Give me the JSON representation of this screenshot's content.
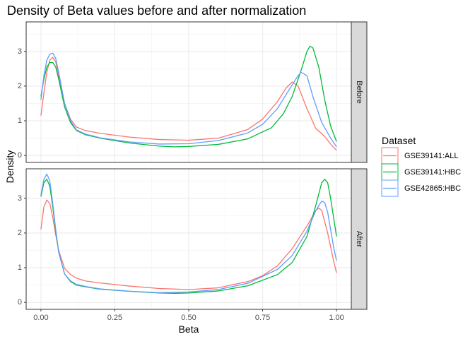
{
  "chart_data": {
    "type": "line",
    "title": "Density of Beta values before and after normalization",
    "xlabel": "Beta",
    "ylabel": "Density",
    "xlim": [
      -0.05,
      1.05
    ],
    "ylim": [
      -0.2,
      3.85
    ],
    "x_ticks": [
      0.0,
      0.25,
      0.5,
      0.75,
      1.0
    ],
    "x_tick_labels": [
      "0.00",
      "0.25",
      "0.50",
      "0.75",
      "1.00"
    ],
    "y_ticks": [
      0,
      1,
      2,
      3
    ],
    "y_tick_labels": [
      "0",
      "1",
      "2",
      "3"
    ],
    "grid": true,
    "legend": {
      "title": "Dataset",
      "position": "right",
      "entries": [
        {
          "name": "GSE39141:ALL",
          "color": "#F8766D"
        },
        {
          "name": "GSE39141:HBC",
          "color": "#00BA38"
        },
        {
          "name": "GSE42865:HBC",
          "color": "#619CFF"
        }
      ]
    },
    "panels": [
      {
        "label": "Before",
        "series": [
          {
            "name": "GSE39141:ALL",
            "color": "#F8766D",
            "points": [
              [
                0.0,
                1.15
              ],
              [
                0.01,
                1.8
              ],
              [
                0.02,
                2.4
              ],
              [
                0.03,
                2.75
              ],
              [
                0.04,
                2.83
              ],
              [
                0.05,
                2.7
              ],
              [
                0.06,
                2.3
              ],
              [
                0.08,
                1.5
              ],
              [
                0.1,
                1.05
              ],
              [
                0.12,
                0.82
              ],
              [
                0.15,
                0.72
              ],
              [
                0.2,
                0.64
              ],
              [
                0.3,
                0.53
              ],
              [
                0.4,
                0.46
              ],
              [
                0.5,
                0.44
              ],
              [
                0.6,
                0.5
              ],
              [
                0.7,
                0.75
              ],
              [
                0.75,
                1.05
              ],
              [
                0.8,
                1.55
              ],
              [
                0.83,
                1.95
              ],
              [
                0.85,
                2.12
              ],
              [
                0.87,
                2.0
              ],
              [
                0.9,
                1.35
              ],
              [
                0.93,
                0.78
              ],
              [
                0.96,
                0.55
              ],
              [
                0.98,
                0.33
              ],
              [
                1.0,
                0.15
              ]
            ]
          },
          {
            "name": "GSE39141:HBC",
            "color": "#00BA38",
            "points": [
              [
                0.0,
                1.7
              ],
              [
                0.01,
                2.2
              ],
              [
                0.02,
                2.55
              ],
              [
                0.03,
                2.68
              ],
              [
                0.04,
                2.68
              ],
              [
                0.05,
                2.55
              ],
              [
                0.06,
                2.2
              ],
              [
                0.08,
                1.4
              ],
              [
                0.1,
                0.95
              ],
              [
                0.12,
                0.72
              ],
              [
                0.15,
                0.6
              ],
              [
                0.2,
                0.5
              ],
              [
                0.3,
                0.36
              ],
              [
                0.4,
                0.27
              ],
              [
                0.45,
                0.25
              ],
              [
                0.5,
                0.26
              ],
              [
                0.6,
                0.32
              ],
              [
                0.7,
                0.48
              ],
              [
                0.78,
                0.8
              ],
              [
                0.82,
                1.2
              ],
              [
                0.85,
                1.7
              ],
              [
                0.88,
                2.45
              ],
              [
                0.9,
                3.0
              ],
              [
                0.91,
                3.15
              ],
              [
                0.92,
                3.1
              ],
              [
                0.94,
                2.55
              ],
              [
                0.96,
                1.6
              ],
              [
                0.98,
                0.85
              ],
              [
                1.0,
                0.4
              ]
            ]
          },
          {
            "name": "GSE42865:HBC",
            "color": "#619CFF",
            "points": [
              [
                0.0,
                1.6
              ],
              [
                0.01,
                2.3
              ],
              [
                0.02,
                2.75
              ],
              [
                0.03,
                2.92
              ],
              [
                0.04,
                2.95
              ],
              [
                0.05,
                2.8
              ],
              [
                0.06,
                2.4
              ],
              [
                0.08,
                1.5
              ],
              [
                0.1,
                1.0
              ],
              [
                0.12,
                0.74
              ],
              [
                0.15,
                0.62
              ],
              [
                0.2,
                0.51
              ],
              [
                0.3,
                0.39
              ],
              [
                0.4,
                0.33
              ],
              [
                0.5,
                0.34
              ],
              [
                0.6,
                0.43
              ],
              [
                0.7,
                0.65
              ],
              [
                0.75,
                0.9
              ],
              [
                0.8,
                1.35
              ],
              [
                0.84,
                1.9
              ],
              [
                0.87,
                2.3
              ],
              [
                0.88,
                2.4
              ],
              [
                0.9,
                2.3
              ],
              [
                0.92,
                1.7
              ],
              [
                0.95,
                0.95
              ],
              [
                0.98,
                0.5
              ],
              [
                1.0,
                0.25
              ]
            ]
          }
        ]
      },
      {
        "label": "After",
        "series": [
          {
            "name": "GSE39141:ALL",
            "color": "#F8766D",
            "points": [
              [
                0.0,
                2.1
              ],
              [
                0.01,
                2.75
              ],
              [
                0.02,
                2.95
              ],
              [
                0.03,
                2.85
              ],
              [
                0.04,
                2.45
              ],
              [
                0.05,
                1.95
              ],
              [
                0.06,
                1.5
              ],
              [
                0.08,
                0.98
              ],
              [
                0.1,
                0.8
              ],
              [
                0.12,
                0.7
              ],
              [
                0.15,
                0.62
              ],
              [
                0.2,
                0.56
              ],
              [
                0.3,
                0.47
              ],
              [
                0.4,
                0.4
              ],
              [
                0.5,
                0.37
              ],
              [
                0.6,
                0.42
              ],
              [
                0.7,
                0.6
              ],
              [
                0.75,
                0.77
              ],
              [
                0.8,
                1.05
              ],
              [
                0.85,
                1.55
              ],
              [
                0.9,
                2.2
              ],
              [
                0.93,
                2.65
              ],
              [
                0.94,
                2.72
              ],
              [
                0.95,
                2.65
              ],
              [
                0.97,
                2.0
              ],
              [
                0.99,
                1.2
              ],
              [
                1.0,
                0.85
              ]
            ]
          },
          {
            "name": "GSE39141:HBC",
            "color": "#00BA38",
            "points": [
              [
                0.0,
                3.05
              ],
              [
                0.01,
                3.45
              ],
              [
                0.02,
                3.55
              ],
              [
                0.03,
                3.35
              ],
              [
                0.04,
                2.75
              ],
              [
                0.05,
                2.05
              ],
              [
                0.06,
                1.45
              ],
              [
                0.08,
                0.82
              ],
              [
                0.1,
                0.6
              ],
              [
                0.12,
                0.5
              ],
              [
                0.15,
                0.45
              ],
              [
                0.2,
                0.38
              ],
              [
                0.3,
                0.32
              ],
              [
                0.4,
                0.27
              ],
              [
                0.45,
                0.26
              ],
              [
                0.5,
                0.27
              ],
              [
                0.6,
                0.33
              ],
              [
                0.7,
                0.48
              ],
              [
                0.8,
                0.8
              ],
              [
                0.85,
                1.15
              ],
              [
                0.9,
                1.9
              ],
              [
                0.93,
                2.8
              ],
              [
                0.95,
                3.45
              ],
              [
                0.96,
                3.55
              ],
              [
                0.97,
                3.45
              ],
              [
                0.98,
                3.0
              ],
              [
                0.99,
                2.45
              ],
              [
                1.0,
                1.9
              ]
            ]
          },
          {
            "name": "GSE42865:HBC",
            "color": "#619CFF",
            "points": [
              [
                0.0,
                3.1
              ],
              [
                0.01,
                3.55
              ],
              [
                0.02,
                3.7
              ],
              [
                0.03,
                3.5
              ],
              [
                0.04,
                2.85
              ],
              [
                0.05,
                2.1
              ],
              [
                0.06,
                1.45
              ],
              [
                0.08,
                0.82
              ],
              [
                0.1,
                0.62
              ],
              [
                0.12,
                0.52
              ],
              [
                0.15,
                0.46
              ],
              [
                0.2,
                0.39
              ],
              [
                0.3,
                0.32
              ],
              [
                0.4,
                0.28
              ],
              [
                0.5,
                0.3
              ],
              [
                0.6,
                0.37
              ],
              [
                0.7,
                0.55
              ],
              [
                0.8,
                0.95
              ],
              [
                0.85,
                1.35
              ],
              [
                0.9,
                2.05
              ],
              [
                0.93,
                2.65
              ],
              [
                0.95,
                2.92
              ],
              [
                0.96,
                2.88
              ],
              [
                0.97,
                2.6
              ],
              [
                0.98,
                2.1
              ],
              [
                0.99,
                1.6
              ],
              [
                1.0,
                1.2
              ]
            ]
          }
        ]
      }
    ]
  }
}
